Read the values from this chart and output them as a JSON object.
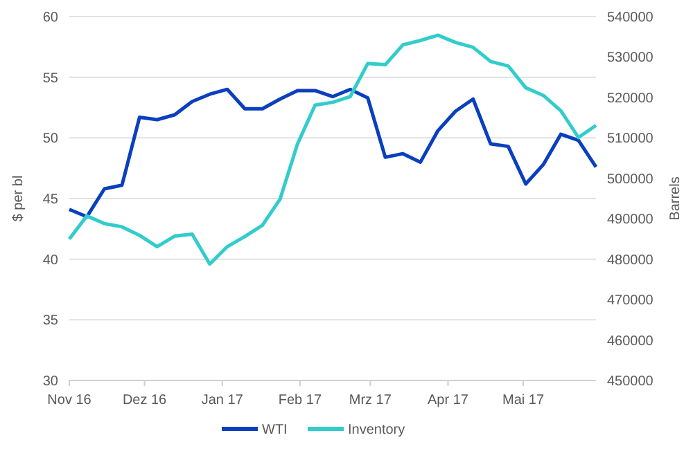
{
  "chart_data": {
    "type": "line",
    "ylabel": "$ per bl",
    "y2label": "Barrels",
    "x": [
      "2016-11-01",
      "2016-11-08",
      "2016-11-15",
      "2016-11-22",
      "2016-11-29",
      "2016-12-06",
      "2016-12-13",
      "2016-12-20",
      "2016-12-27",
      "2017-01-03",
      "2017-01-10",
      "2017-01-17",
      "2017-01-24",
      "2017-01-31",
      "2017-02-07",
      "2017-02-14",
      "2017-02-21",
      "2017-02-28",
      "2017-03-07",
      "2017-03-14",
      "2017-03-21",
      "2017-03-28",
      "2017-04-04",
      "2017-04-11",
      "2017-04-18",
      "2017-04-25",
      "2017-05-02",
      "2017-05-09",
      "2017-05-16",
      "2017-05-23",
      "2017-05-30"
    ],
    "series": [
      {
        "name": "WTI",
        "color": "#0a3fbf",
        "values": [
          44.1,
          43.5,
          45.8,
          46.1,
          51.7,
          51.5,
          51.9,
          53.0,
          53.6,
          54.0,
          52.4,
          52.4,
          53.2,
          53.9,
          53.9,
          53.4,
          54.0,
          53.3,
          48.4,
          48.7,
          48.0,
          50.6,
          52.2,
          53.2,
          49.5,
          49.3,
          46.2,
          47.8,
          50.3,
          49.8,
          47.6
        ]
      },
      {
        "name": "Inventory",
        "color": "#33cccc",
        "axis": "y2",
        "values": [
          485000,
          490700,
          488800,
          488000,
          485900,
          483100,
          485700,
          486200,
          478800,
          483100,
          485600,
          488400,
          494800,
          508500,
          518100,
          518800,
          520200,
          528400,
          528100,
          533000,
          534100,
          535400,
          533600,
          532400,
          528900,
          527800,
          522400,
          520500,
          516700,
          510100,
          513100
        ]
      }
    ],
    "xlim": [
      "2016-11-01",
      "2017-05-30"
    ],
    "xticks": [
      {
        "value": "2016-11-01",
        "label": "Nov 16"
      },
      {
        "value": "2016-12-01",
        "label": "Dez 16"
      },
      {
        "value": "2017-01-01",
        "label": "Jan 17"
      },
      {
        "value": "2017-02-01",
        "label": "Feb 17"
      },
      {
        "value": "2017-03-01",
        "label": "Mrz 17"
      },
      {
        "value": "2017-04-01",
        "label": "Apr 17"
      },
      {
        "value": "2017-05-01",
        "label": "Mai 17"
      }
    ],
    "ylim": [
      30,
      60
    ],
    "yticks": [
      30,
      35,
      40,
      45,
      50,
      55,
      60
    ],
    "y2lim": [
      450000,
      540000
    ],
    "y2ticks": [
      450000,
      460000,
      470000,
      480000,
      490000,
      500000,
      510000,
      520000,
      530000,
      540000
    ],
    "grid": "y",
    "legend": "bottom",
    "line_style": "solid",
    "marker": "none"
  }
}
